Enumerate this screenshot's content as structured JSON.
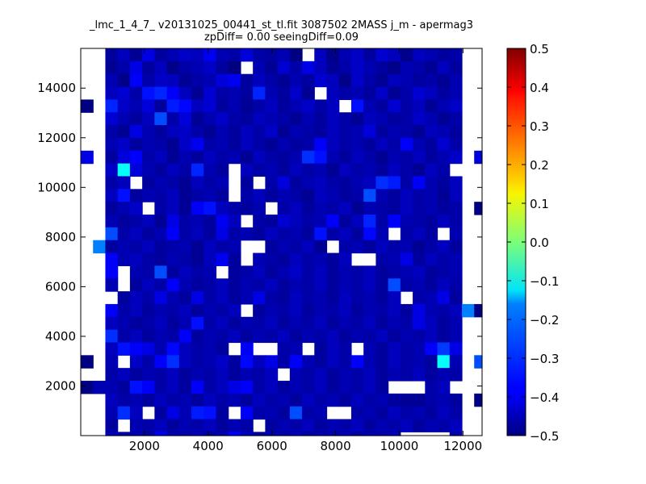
{
  "title": {
    "line1": "_lmc_1_4_7_ v20131025_00441_st_tl.fit 3087502 2MASS j_m - apermag3",
    "line2": "zpDiff= 0.00 seeingDiff=0.09"
  },
  "chart_data": {
    "type": "heatmap",
    "title": "_lmc_1_4_7_ v20131025_00441_st_tl.fit 3087502 2MASS j_m - apermag3 zpDiff= 0.00 seeingDiff=0.09",
    "xlabel": "",
    "ylabel": "",
    "xlim": [
      0,
      12600
    ],
    "ylim": [
      0,
      15600
    ],
    "xticks": [
      2000,
      4000,
      6000,
      8000,
      10000,
      12000
    ],
    "yticks": [
      2000,
      4000,
      6000,
      8000,
      10000,
      12000,
      14000
    ],
    "colormap": "jet",
    "colorbar": {
      "vmin": -0.5,
      "vmax": 0.5,
      "ticks": [
        0.5,
        0.4,
        0.3,
        0.2,
        0.1,
        0.0,
        -0.1,
        -0.2,
        -0.3,
        -0.4,
        -0.5
      ],
      "tick_labels": [
        "0.5",
        "0.4",
        "0.3",
        "0.2",
        "0.1",
        "0.0",
        "−0.1",
        "−0.2",
        "−0.3",
        "−0.4",
        "−0.5"
      ]
    },
    "grid": [
      [
        null,
        null,
        -0.47,
        -0.44,
        -0.48,
        -0.4,
        -0.47,
        -0.45,
        -0.43,
        -0.44,
        -0.39,
        -0.45,
        -0.46,
        -0.41,
        -0.46,
        -0.47,
        -0.45,
        -0.5,
        null,
        -0.44,
        -0.49,
        -0.45,
        -0.43,
        -0.47,
        -0.42,
        -0.44,
        -0.49,
        -0.44,
        -0.45,
        -0.47,
        -0.46,
        null,
        null
      ],
      [
        null,
        null,
        -0.48,
        -0.46,
        -0.4,
        -0.47,
        -0.44,
        -0.49,
        -0.46,
        -0.45,
        -0.43,
        -0.47,
        -0.5,
        null,
        -0.45,
        -0.48,
        -0.42,
        -0.46,
        -0.4,
        -0.44,
        -0.48,
        -0.46,
        -0.43,
        -0.45,
        -0.47,
        -0.49,
        -0.45,
        -0.46,
        -0.48,
        -0.44,
        -0.47,
        null,
        null
      ],
      [
        null,
        null,
        -0.45,
        -0.49,
        -0.38,
        -0.46,
        -0.43,
        -0.44,
        -0.48,
        -0.46,
        -0.45,
        -0.41,
        -0.39,
        -0.47,
        -0.44,
        -0.46,
        -0.48,
        -0.45,
        -0.47,
        -0.42,
        -0.44,
        -0.49,
        -0.43,
        -0.46,
        -0.48,
        -0.44,
        -0.45,
        -0.47,
        -0.46,
        -0.48,
        -0.45,
        null,
        null
      ],
      [
        null,
        null,
        -0.44,
        -0.42,
        -0.46,
        -0.36,
        -0.34,
        -0.38,
        -0.44,
        -0.48,
        -0.42,
        -0.46,
        -0.45,
        -0.47,
        -0.34,
        -0.45,
        -0.47,
        -0.43,
        -0.48,
        null,
        -0.44,
        -0.46,
        -0.45,
        -0.47,
        -0.43,
        -0.48,
        -0.46,
        -0.42,
        -0.44,
        -0.47,
        -0.45,
        null,
        null
      ],
      [
        -0.5,
        null,
        -0.34,
        -0.43,
        -0.45,
        -0.41,
        -0.47,
        -0.35,
        -0.37,
        -0.44,
        -0.42,
        -0.47,
        -0.45,
        -0.48,
        -0.46,
        -0.44,
        -0.47,
        -0.45,
        -0.43,
        -0.46,
        -0.44,
        null,
        -0.36,
        -0.45,
        -0.47,
        -0.42,
        -0.46,
        -0.44,
        -0.48,
        -0.45,
        -0.43,
        null,
        null
      ],
      [
        null,
        null,
        -0.42,
        -0.45,
        -0.47,
        -0.44,
        -0.3,
        -0.46,
        -0.41,
        -0.48,
        -0.45,
        -0.43,
        -0.46,
        -0.47,
        -0.44,
        -0.45,
        -0.46,
        -0.48,
        -0.45,
        -0.47,
        -0.44,
        -0.46,
        -0.48,
        -0.44,
        -0.45,
        -0.47,
        -0.46,
        -0.43,
        -0.45,
        -0.48,
        -0.46,
        null,
        null
      ],
      [
        null,
        null,
        -0.46,
        -0.48,
        -0.4,
        -0.45,
        -0.47,
        -0.44,
        -0.43,
        -0.46,
        -0.48,
        -0.45,
        -0.47,
        -0.44,
        -0.46,
        -0.43,
        -0.48,
        -0.45,
        -0.46,
        -0.47,
        -0.44,
        -0.46,
        -0.45,
        -0.41,
        -0.47,
        -0.45,
        -0.46,
        -0.48,
        -0.44,
        -0.45,
        -0.47,
        null,
        null
      ],
      [
        null,
        null,
        -0.45,
        -0.43,
        -0.47,
        -0.45,
        -0.46,
        -0.48,
        -0.43,
        -0.39,
        -0.46,
        -0.45,
        -0.47,
        -0.44,
        -0.46,
        -0.48,
        -0.45,
        -0.47,
        -0.46,
        -0.38,
        -0.44,
        -0.46,
        -0.45,
        -0.47,
        -0.44,
        -0.46,
        -0.38,
        -0.45,
        -0.47,
        -0.42,
        -0.46,
        null,
        null
      ],
      [
        -0.4,
        null,
        -0.47,
        -0.41,
        -0.38,
        -0.46,
        -0.44,
        -0.48,
        -0.45,
        -0.47,
        -0.44,
        -0.46,
        -0.45,
        -0.48,
        -0.44,
        -0.46,
        -0.47,
        -0.45,
        -0.33,
        -0.36,
        -0.45,
        -0.47,
        -0.44,
        -0.46,
        -0.48,
        -0.45,
        -0.46,
        -0.44,
        -0.47,
        -0.45,
        -0.43,
        null,
        -0.41
      ],
      [
        null,
        null,
        -0.43,
        -0.12,
        -0.41,
        -0.45,
        -0.47,
        -0.44,
        -0.46,
        -0.34,
        -0.45,
        -0.47,
        null,
        -0.44,
        -0.46,
        -0.45,
        -0.47,
        -0.44,
        -0.46,
        -0.45,
        -0.48,
        -0.44,
        -0.46,
        -0.45,
        -0.47,
        -0.44,
        -0.46,
        -0.48,
        -0.44,
        -0.46,
        null,
        null,
        null
      ],
      [
        null,
        null,
        -0.46,
        -0.44,
        null,
        -0.47,
        -0.45,
        -0.46,
        -0.48,
        -0.44,
        -0.46,
        -0.45,
        null,
        -0.47,
        null,
        -0.46,
        -0.41,
        -0.47,
        -0.45,
        -0.44,
        -0.46,
        -0.47,
        -0.45,
        -0.44,
        -0.33,
        -0.35,
        -0.46,
        -0.38,
        -0.45,
        -0.47,
        -0.44,
        null,
        null
      ],
      [
        null,
        null,
        -0.44,
        -0.36,
        -0.47,
        -0.45,
        -0.46,
        -0.44,
        -0.48,
        -0.46,
        -0.45,
        -0.47,
        null,
        -0.46,
        -0.44,
        -0.47,
        -0.45,
        -0.46,
        -0.48,
        -0.44,
        -0.45,
        -0.47,
        -0.46,
        -0.3,
        -0.45,
        -0.47,
        -0.44,
        -0.46,
        -0.45,
        -0.48,
        -0.44,
        null,
        null
      ],
      [
        null,
        null,
        -0.47,
        -0.45,
        -0.43,
        null,
        -0.46,
        -0.44,
        -0.48,
        -0.38,
        -0.36,
        -0.44,
        -0.46,
        -0.47,
        -0.45,
        null,
        -0.46,
        -0.44,
        -0.47,
        -0.45,
        -0.46,
        -0.44,
        -0.48,
        -0.45,
        -0.46,
        -0.47,
        -0.44,
        -0.46,
        -0.45,
        -0.47,
        -0.46,
        null,
        -0.5
      ],
      [
        null,
        null,
        -0.45,
        -0.47,
        -0.46,
        -0.44,
        -0.48,
        -0.4,
        -0.46,
        -0.45,
        -0.47,
        -0.39,
        -0.44,
        null,
        -0.46,
        -0.47,
        -0.42,
        -0.44,
        -0.46,
        -0.45,
        -0.38,
        -0.47,
        -0.44,
        -0.34,
        -0.46,
        -0.38,
        -0.45,
        -0.46,
        -0.47,
        -0.44,
        -0.46,
        null,
        null
      ],
      [
        null,
        null,
        -0.3,
        -0.46,
        -0.44,
        -0.47,
        -0.45,
        -0.38,
        -0.46,
        -0.44,
        -0.47,
        -0.4,
        -0.46,
        -0.45,
        -0.47,
        -0.44,
        -0.46,
        -0.45,
        -0.47,
        -0.36,
        -0.46,
        -0.44,
        -0.47,
        -0.37,
        -0.45,
        null,
        -0.46,
        -0.44,
        -0.47,
        null,
        -0.45,
        null,
        null
      ],
      [
        null,
        -0.25,
        -0.47,
        -0.45,
        -0.46,
        -0.44,
        -0.47,
        -0.46,
        -0.45,
        -0.48,
        -0.44,
        -0.46,
        -0.45,
        null,
        null,
        -0.47,
        -0.45,
        -0.46,
        -0.44,
        -0.48,
        null,
        -0.46,
        -0.45,
        -0.47,
        -0.44,
        -0.46,
        -0.45,
        -0.48,
        -0.46,
        -0.44,
        -0.47,
        null,
        null
      ],
      [
        null,
        null,
        -0.38,
        -0.45,
        -0.44,
        -0.46,
        -0.47,
        -0.45,
        -0.46,
        -0.48,
        -0.44,
        -0.39,
        -0.47,
        null,
        -0.45,
        -0.46,
        -0.47,
        -0.44,
        -0.46,
        -0.45,
        -0.47,
        -0.44,
        null,
        null,
        -0.46,
        -0.45,
        -0.4,
        -0.47,
        -0.44,
        -0.46,
        -0.45,
        null,
        null
      ],
      [
        null,
        null,
        -0.38,
        null,
        -0.45,
        -0.46,
        -0.3,
        -0.47,
        -0.44,
        -0.46,
        -0.45,
        null,
        -0.47,
        -0.46,
        -0.44,
        -0.47,
        -0.45,
        -0.43,
        -0.46,
        -0.44,
        -0.47,
        -0.45,
        -0.46,
        -0.44,
        -0.47,
        -0.46,
        -0.45,
        -0.44,
        -0.47,
        -0.46,
        -0.45,
        null,
        null
      ],
      [
        null,
        null,
        -0.45,
        null,
        -0.47,
        -0.44,
        -0.46,
        -0.38,
        -0.45,
        -0.47,
        -0.46,
        -0.44,
        -0.47,
        -0.45,
        -0.46,
        -0.44,
        -0.47,
        -0.45,
        -0.46,
        -0.44,
        -0.47,
        -0.45,
        -0.46,
        -0.44,
        -0.47,
        -0.3,
        -0.46,
        -0.45,
        -0.47,
        -0.44,
        -0.46,
        null,
        null
      ],
      [
        null,
        null,
        null,
        -0.47,
        -0.44,
        -0.46,
        -0.4,
        -0.45,
        -0.47,
        -0.4,
        -0.46,
        -0.44,
        -0.47,
        -0.45,
        -0.4,
        -0.46,
        -0.47,
        -0.44,
        -0.46,
        -0.45,
        -0.47,
        -0.44,
        -0.46,
        -0.45,
        -0.47,
        -0.44,
        null,
        -0.46,
        -0.45,
        -0.4,
        -0.47,
        null,
        null
      ],
      [
        null,
        null,
        -0.38,
        -0.46,
        -0.44,
        -0.47,
        -0.45,
        -0.46,
        -0.44,
        -0.47,
        -0.45,
        -0.46,
        -0.44,
        null,
        -0.47,
        -0.45,
        -0.46,
        -0.44,
        -0.47,
        -0.45,
        -0.46,
        -0.44,
        -0.47,
        -0.45,
        -0.46,
        -0.44,
        -0.47,
        -0.4,
        -0.45,
        -0.46,
        -0.44,
        -0.25,
        -0.5
      ],
      [
        null,
        null,
        -0.44,
        -0.45,
        -0.47,
        -0.46,
        -0.44,
        -0.47,
        -0.45,
        -0.36,
        -0.46,
        -0.44,
        -0.47,
        -0.45,
        -0.46,
        -0.44,
        -0.47,
        -0.45,
        -0.46,
        -0.44,
        -0.47,
        -0.45,
        -0.46,
        -0.44,
        -0.47,
        -0.45,
        -0.46,
        -0.4,
        -0.44,
        -0.47,
        -0.45,
        null,
        null
      ],
      [
        null,
        null,
        -0.33,
        -0.46,
        -0.44,
        -0.47,
        -0.45,
        -0.46,
        -0.38,
        -0.47,
        -0.45,
        -0.46,
        -0.44,
        -0.47,
        -0.45,
        -0.46,
        -0.44,
        -0.47,
        -0.45,
        -0.46,
        -0.44,
        -0.47,
        -0.45,
        -0.46,
        -0.44,
        -0.47,
        -0.45,
        -0.46,
        -0.44,
        -0.47,
        -0.45,
        null,
        null
      ],
      [
        null,
        null,
        -0.44,
        -0.36,
        -0.38,
        -0.4,
        -0.45,
        -0.37,
        -0.44,
        -0.46,
        -0.45,
        -0.47,
        null,
        -0.38,
        null,
        null,
        -0.46,
        -0.45,
        null,
        -0.47,
        -0.44,
        -0.46,
        null,
        -0.45,
        -0.47,
        -0.44,
        -0.46,
        -0.45,
        -0.38,
        -0.32,
        -0.4,
        null,
        null
      ],
      [
        -0.5,
        null,
        -0.45,
        null,
        -0.43,
        -0.46,
        -0.38,
        -0.33,
        -0.44,
        -0.46,
        -0.45,
        -0.43,
        -0.47,
        -0.37,
        -0.44,
        -0.4,
        -0.46,
        -0.38,
        -0.45,
        -0.47,
        -0.44,
        -0.46,
        -0.38,
        -0.45,
        -0.47,
        -0.44,
        -0.46,
        -0.45,
        -0.47,
        -0.12,
        -0.45,
        null,
        -0.3
      ],
      [
        null,
        null,
        -0.46,
        -0.44,
        -0.47,
        -0.45,
        -0.46,
        -0.44,
        -0.47,
        -0.45,
        -0.46,
        -0.44,
        -0.47,
        -0.45,
        -0.46,
        -0.44,
        null,
        -0.45,
        -0.46,
        -0.44,
        -0.47,
        -0.45,
        -0.46,
        -0.44,
        -0.47,
        -0.45,
        -0.46,
        -0.44,
        -0.47,
        -0.45,
        -0.46,
        null,
        null
      ],
      [
        -0.5,
        -0.45,
        -0.45,
        -0.47,
        -0.36,
        -0.38,
        -0.46,
        -0.44,
        -0.47,
        -0.38,
        -0.46,
        -0.44,
        -0.4,
        -0.38,
        -0.46,
        -0.44,
        -0.47,
        -0.45,
        -0.46,
        -0.44,
        -0.47,
        -0.45,
        -0.46,
        -0.44,
        -0.47,
        null,
        null,
        null,
        -0.46,
        -0.44,
        null,
        null,
        null
      ],
      [
        null,
        null,
        -0.44,
        -0.46,
        -0.45,
        -0.47,
        -0.44,
        -0.46,
        -0.45,
        -0.47,
        -0.44,
        -0.46,
        -0.45,
        -0.47,
        -0.44,
        -0.46,
        -0.45,
        -0.47,
        -0.44,
        -0.46,
        -0.45,
        -0.47,
        -0.44,
        -0.46,
        -0.45,
        -0.47,
        -0.48,
        -0.48,
        -0.46,
        -0.45,
        -0.47,
        null,
        -0.5
      ],
      [
        null,
        null,
        -0.45,
        -0.33,
        -0.44,
        null,
        -0.47,
        -0.4,
        -0.45,
        -0.35,
        -0.36,
        -0.47,
        null,
        -0.38,
        -0.46,
        -0.45,
        -0.47,
        -0.3,
        -0.46,
        -0.45,
        null,
        null,
        -0.46,
        -0.45,
        -0.47,
        -0.44,
        -0.46,
        -0.45,
        -0.47,
        -0.44,
        -0.46,
        null,
        null
      ],
      [
        null,
        null,
        -0.47,
        null,
        -0.45,
        -0.46,
        -0.44,
        -0.47,
        -0.45,
        -0.46,
        -0.44,
        -0.47,
        -0.45,
        -0.46,
        null,
        -0.47,
        -0.45,
        -0.46,
        -0.44,
        -0.47,
        -0.45,
        -0.46,
        -0.44,
        -0.47,
        -0.45,
        -0.46,
        -0.44,
        -0.47,
        -0.45,
        -0.46,
        -0.44,
        null,
        null
      ],
      [
        null,
        null,
        -0.44,
        -0.46,
        -0.45,
        -0.47,
        -0.39,
        -0.45,
        -0.46,
        -0.44,
        -0.47,
        -0.45,
        -0.38,
        -0.44,
        -0.47,
        -0.45,
        -0.46,
        -0.44,
        -0.47,
        -0.45,
        -0.46,
        -0.44,
        -0.47,
        -0.45,
        -0.46,
        -0.44,
        null,
        null,
        null,
        null,
        -0.46,
        null,
        null
      ]
    ],
    "cell_width": 386,
    "cell_height": 515,
    "note_values": "grid[row][col], row 0 = top (y 15090-15600), col 0 = x 0-386; null = empty (white) cell"
  }
}
